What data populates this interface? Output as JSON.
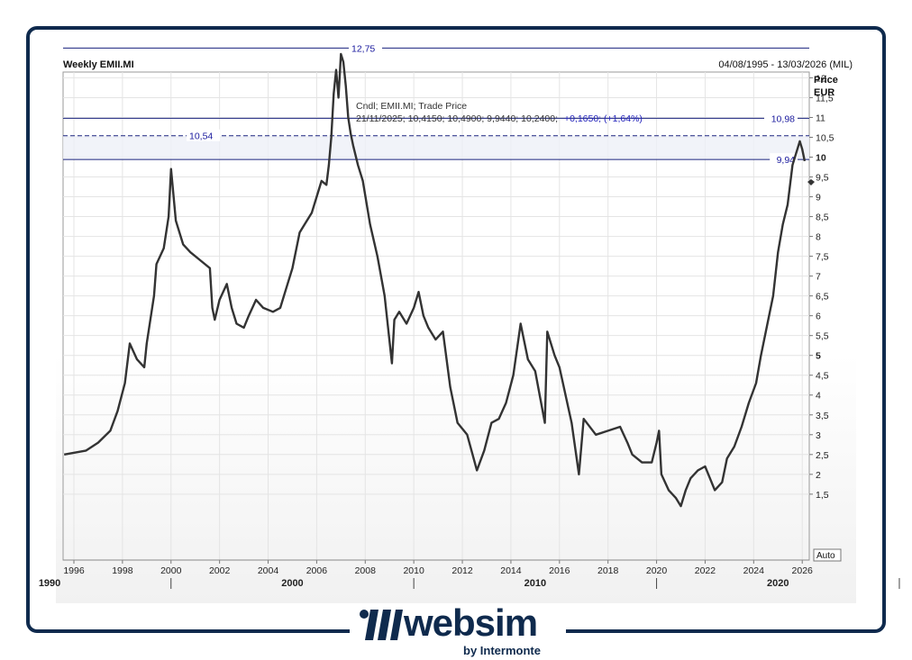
{
  "header": {
    "title": "Weekly EMII.MI",
    "range": "04/08/1995 - 13/03/2026 (MIL)"
  },
  "axis": {
    "price_label": "Price",
    "currency": "EUR",
    "auto_button": "Auto",
    "y_ticks": [
      "1,5",
      "2",
      "2,5",
      "3",
      "3,5",
      "4",
      "4,5",
      "5",
      "5,5",
      "6",
      "6,5",
      "7",
      "7,5",
      "8",
      "8,5",
      "9",
      "9,5",
      "10",
      "10,5",
      "11",
      "11,5",
      "12"
    ],
    "y_tick_values": [
      1.5,
      2,
      2.5,
      3,
      3.5,
      4,
      4.5,
      5,
      5.5,
      6,
      6.5,
      7,
      7.5,
      8,
      8.5,
      9,
      9.5,
      10,
      10.5,
      11,
      11.5,
      12
    ],
    "bold_ticks": [
      "5",
      "10"
    ],
    "x_year_ticks": [
      "1996",
      "1998",
      "2000",
      "2002",
      "2004",
      "2006",
      "2008",
      "2010",
      "2012",
      "2014",
      "2016",
      "2018",
      "2020",
      "2022",
      "2024",
      "2026"
    ],
    "x_decade_ticks": [
      "1990",
      "2000",
      "2010",
      "2020"
    ]
  },
  "tooltip": {
    "line1": "Cndl; EMII.MI; Trade Price",
    "line2": "21/11/2025; 10,4150; 10,4900; 9,9440; 10,2400;",
    "change": "+0,1650; (+1,64%)"
  },
  "levels": [
    {
      "value": 12.75,
      "label": "12,75",
      "style": "solid"
    },
    {
      "value": 10.98,
      "label": "10,98",
      "style": "solid"
    },
    {
      "value": 10.54,
      "label": "10,54",
      "style": "dashed"
    },
    {
      "value": 9.94,
      "label": "9,94",
      "style": "solid"
    }
  ],
  "colors": {
    "series": "#333333",
    "level_line": "#1a237e",
    "label_text": "#1a1a9e",
    "frame": "#0f2a4d"
  },
  "logo": {
    "word": "websim",
    "sub": "by Intermonte"
  },
  "chart_data": {
    "type": "line",
    "title": "Weekly EMII.MI",
    "ylabel": "Price EUR",
    "ylim": [
      1.0,
      12.8
    ],
    "xlim": [
      1995.6,
      2026.2
    ],
    "log_scale": false,
    "grid": true,
    "series": [
      {
        "x": [
          1995.6,
          1996.5,
          1997.0,
          1997.5,
          1997.8,
          1998.1,
          1998.3,
          1998.6,
          1998.9,
          1999.0,
          1999.3,
          1999.4,
          1999.7,
          1999.9,
          2000.0,
          2000.2,
          2000.5,
          2000.8,
          2001.0,
          2001.2,
          2001.6,
          2001.7,
          2001.8,
          2002.0,
          2002.3,
          2002.5,
          2002.7,
          2003.0,
          2003.2,
          2003.5,
          2003.8,
          2004.2,
          2004.5,
          2004.7,
          2005.0,
          2005.3,
          2005.5,
          2005.8,
          2006.0,
          2006.2,
          2006.4,
          2006.5,
          2006.6,
          2006.7,
          2006.8,
          2006.9,
          2007.0,
          2007.1,
          2007.2,
          2007.3,
          2007.4,
          2007.5,
          2007.7,
          2007.9,
          2008.2,
          2008.5,
          2008.8,
          2009.1,
          2009.2,
          2009.4,
          2009.7,
          2010.0,
          2010.2,
          2010.4,
          2010.6,
          2010.9,
          2011.2,
          2011.5,
          2011.8,
          2012.2,
          2012.6,
          2012.9,
          2013.2,
          2013.5,
          2013.8,
          2014.1,
          2014.4,
          2014.7,
          2015.0,
          2015.4,
          2015.5,
          2015.8,
          2016.0,
          2016.5,
          2016.8,
          2017.0,
          2017.5,
          2018.0,
          2018.5,
          2018.8,
          2019.0,
          2019.4,
          2019.8,
          2020.0,
          2020.1,
          2020.2,
          2020.5,
          2020.8,
          2021.0,
          2021.2,
          2021.4,
          2021.7,
          2022.0,
          2022.2,
          2022.4,
          2022.7,
          2022.9,
          2023.2,
          2023.5,
          2023.8,
          2024.1,
          2024.3,
          2024.5,
          2024.8,
          2025.0,
          2025.2,
          2025.4,
          2025.6,
          2025.8,
          2025.9,
          2026.0,
          2026.1
        ],
        "values": [
          2.5,
          2.6,
          2.8,
          3.1,
          3.6,
          4.3,
          5.3,
          4.9,
          4.7,
          5.3,
          6.5,
          7.3,
          7.7,
          8.5,
          9.7,
          8.4,
          7.8,
          7.6,
          7.5,
          7.4,
          7.2,
          6.2,
          5.9,
          6.4,
          6.8,
          6.2,
          5.8,
          5.7,
          6.0,
          6.4,
          6.2,
          6.1,
          6.2,
          6.6,
          7.2,
          8.1,
          8.3,
          8.6,
          9.0,
          9.4,
          9.3,
          9.8,
          10.5,
          11.6,
          12.2,
          11.5,
          12.6,
          12.4,
          11.8,
          11.0,
          10.6,
          10.3,
          9.8,
          9.4,
          8.3,
          7.5,
          6.5,
          4.8,
          5.9,
          6.1,
          5.8,
          6.2,
          6.6,
          6.0,
          5.7,
          5.4,
          5.6,
          4.2,
          3.3,
          3.0,
          2.1,
          2.6,
          3.3,
          3.4,
          3.8,
          4.5,
          5.8,
          4.9,
          4.6,
          3.3,
          5.6,
          5.0,
          4.7,
          3.3,
          2.0,
          3.4,
          3.0,
          3.1,
          3.2,
          2.8,
          2.5,
          2.3,
          2.3,
          2.8,
          3.1,
          2.0,
          1.6,
          1.4,
          1.2,
          1.6,
          1.9,
          2.1,
          2.2,
          1.9,
          1.6,
          1.8,
          2.4,
          2.7,
          3.2,
          3.8,
          4.3,
          5.0,
          5.6,
          6.5,
          7.6,
          8.3,
          8.8,
          9.8,
          10.2,
          10.4,
          10.2,
          9.9
        ]
      }
    ]
  }
}
